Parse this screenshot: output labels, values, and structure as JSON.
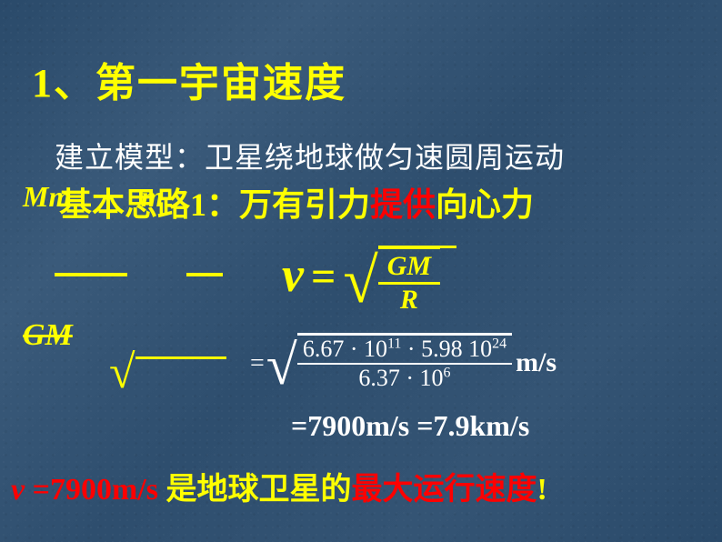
{
  "title": "1、第一宇宙速度",
  "model": "建立模型：卫星绕地球做匀速圆周运动",
  "basic": {
    "pre": "基本思路1：",
    "a": "万有引力",
    "b": "提供",
    "c": "向心力"
  },
  "scribble": {
    "mm": "Mm",
    "m": "m",
    "gm": "GM"
  },
  "eq1": {
    "v": "v",
    "eq": "=",
    "num": "GM",
    "den": "R"
  },
  "eq2": {
    "eq": "=",
    "num_a": "6.67 · 10",
    "num_a_exp": "11",
    "num_b": " · 5.98 10",
    "num_b_exp": "24",
    "den_a": "6.37 · 10",
    "den_exp": "6",
    "unit": "m/s"
  },
  "eq3": "=7900m/s =7.9km/s",
  "bottom": {
    "v": "v ",
    "val": "=7900m/s ",
    "y1": "是地球卫星的",
    "r2": "最大运行速度",
    "excl": "!"
  },
  "colors": {
    "yellow": "#ffff00",
    "red": "#ff0000",
    "white": "#ffffff",
    "bg": "#2f4f6f"
  }
}
